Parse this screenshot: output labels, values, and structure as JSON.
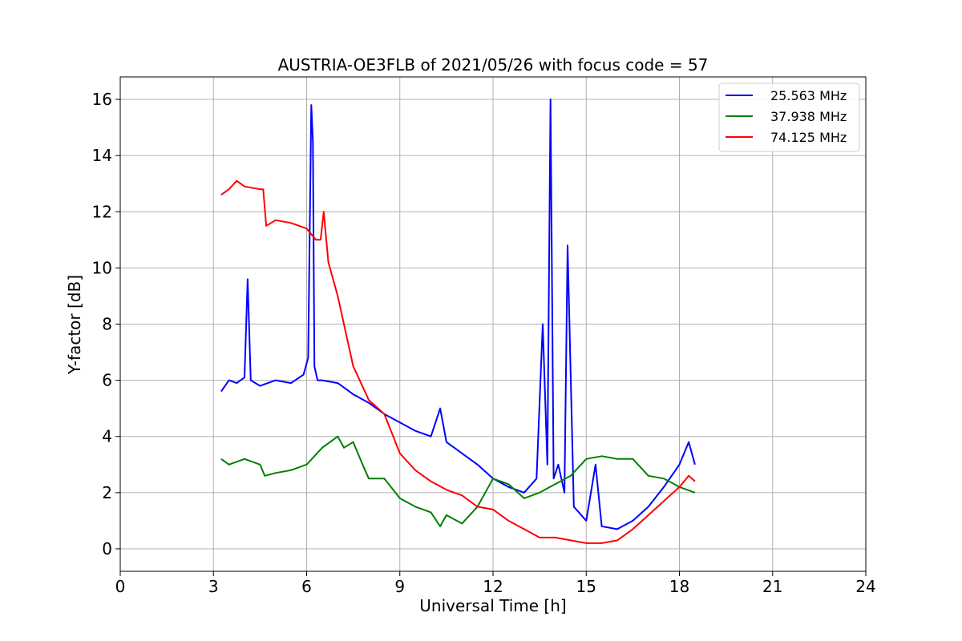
{
  "chart_data": {
    "type": "line",
    "title": "AUSTRIA-OE3FLB of 2021/05/26 with focus code = 57",
    "xlabel": "Universal Time [h]",
    "ylabel": "Y-factor [dB]",
    "xlim": [
      0,
      24
    ],
    "ylim": [
      -0.8,
      16.8
    ],
    "xticks": [
      0,
      3,
      6,
      9,
      12,
      15,
      18,
      21,
      24
    ],
    "yticks": [
      0,
      2,
      4,
      6,
      8,
      10,
      12,
      14,
      16
    ],
    "grid": true,
    "legend_position": "top-right",
    "series": [
      {
        "name": "25.563 MHz",
        "color": "#0000ff",
        "x": [
          3.25,
          3.5,
          3.75,
          4.0,
          4.1,
          4.2,
          4.5,
          5.0,
          5.5,
          5.9,
          6.05,
          6.15,
          6.2,
          6.25,
          6.35,
          6.5,
          7.0,
          7.5,
          8.0,
          8.5,
          9.0,
          9.5,
          10.0,
          10.3,
          10.5,
          11.0,
          11.5,
          12.0,
          12.5,
          13.0,
          13.4,
          13.6,
          13.75,
          13.85,
          13.95,
          14.1,
          14.3,
          14.4,
          14.6,
          15.0,
          15.3,
          15.5,
          16.0,
          16.5,
          17.0,
          17.5,
          18.0,
          18.3,
          18.5
        ],
        "values": [
          5.6,
          6.0,
          5.9,
          6.1,
          9.6,
          6.0,
          5.8,
          6.0,
          5.9,
          6.2,
          6.8,
          15.8,
          14.5,
          6.5,
          6.0,
          6.0,
          5.9,
          5.5,
          5.2,
          4.8,
          4.5,
          4.2,
          4.0,
          5.0,
          3.8,
          3.4,
          3.0,
          2.5,
          2.2,
          2.0,
          2.5,
          8.0,
          3.0,
          16.0,
          2.5,
          3.0,
          2.0,
          10.8,
          1.5,
          1.0,
          3.0,
          0.8,
          0.7,
          1.0,
          1.5,
          2.2,
          3.0,
          3.8,
          3.0
        ]
      },
      {
        "name": "37.938 MHz",
        "color": "#008000",
        "x": [
          3.25,
          3.5,
          4.0,
          4.5,
          4.65,
          5.0,
          5.5,
          6.0,
          6.5,
          7.0,
          7.2,
          7.5,
          7.8,
          8.0,
          8.5,
          9.0,
          9.5,
          10.0,
          10.3,
          10.5,
          11.0,
          11.5,
          12.0,
          12.5,
          13.0,
          13.5,
          14.0,
          14.5,
          15.0,
          15.5,
          16.0,
          16.5,
          17.0,
          17.5,
          18.0,
          18.5
        ],
        "values": [
          3.2,
          3.0,
          3.2,
          3.0,
          2.6,
          2.7,
          2.8,
          3.0,
          3.6,
          4.0,
          3.6,
          3.8,
          3.0,
          2.5,
          2.5,
          1.8,
          1.5,
          1.3,
          0.8,
          1.2,
          0.9,
          1.5,
          2.5,
          2.3,
          1.8,
          2.0,
          2.3,
          2.6,
          3.2,
          3.3,
          3.2,
          3.2,
          2.6,
          2.5,
          2.2,
          2.0
        ]
      },
      {
        "name": "74.125 MHz",
        "color": "#ff0000",
        "x": [
          3.25,
          3.5,
          3.75,
          4.0,
          4.5,
          4.6,
          4.7,
          5.0,
          5.5,
          6.0,
          6.3,
          6.45,
          6.55,
          6.7,
          7.0,
          7.2,
          7.5,
          8.0,
          8.5,
          9.0,
          9.5,
          10.0,
          10.5,
          11.0,
          11.5,
          12.0,
          12.5,
          13.0,
          13.5,
          14.0,
          14.5,
          15.0,
          15.5,
          16.0,
          16.5,
          17.0,
          17.5,
          18.0,
          18.3,
          18.5
        ],
        "values": [
          12.6,
          12.8,
          13.1,
          12.9,
          12.8,
          12.8,
          11.5,
          11.7,
          11.6,
          11.4,
          11.0,
          11.0,
          12.0,
          10.2,
          9.0,
          8.0,
          6.5,
          5.3,
          4.8,
          3.4,
          2.8,
          2.4,
          2.1,
          1.9,
          1.5,
          1.4,
          1.0,
          0.7,
          0.4,
          0.4,
          0.3,
          0.2,
          0.2,
          0.3,
          0.7,
          1.2,
          1.7,
          2.2,
          2.6,
          2.4
        ]
      }
    ]
  }
}
